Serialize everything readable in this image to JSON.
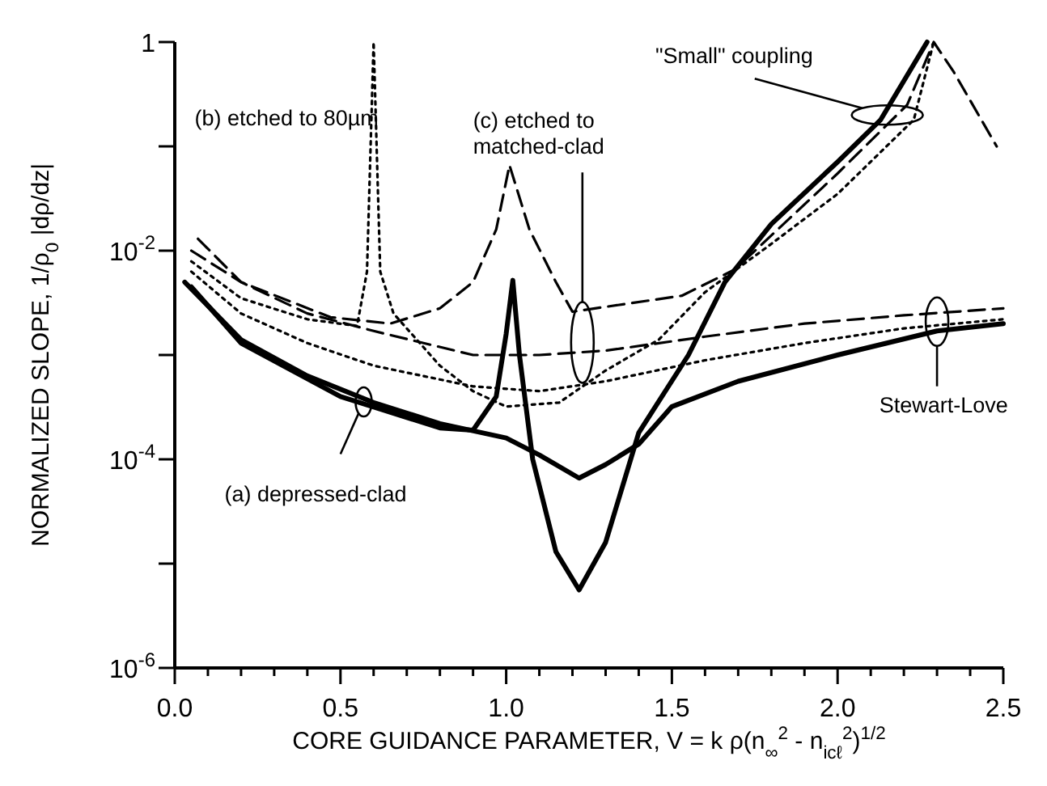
{
  "chart_data": {
    "type": "line",
    "xlabel": "CORE GUIDANCE PARAMETER,   V = k ρ(n$_{∞}$$^{2}$ - n$_{icℓ}$$^{2}$)$^{1/2}$",
    "ylabel": "NORMALIZED SLOPE, 1/ρ$_{0}$ |dρ/dz|",
    "log": true,
    "xlim": [
      0,
      2.5
    ],
    "ylim": [
      1e-06,
      1
    ],
    "xticks": [
      {
        "value": 0,
        "label": "0.0"
      },
      {
        "value": 0.1,
        "label": null
      },
      {
        "value": 0.2,
        "label": null
      },
      {
        "value": 0.3,
        "label": null
      },
      {
        "value": 0.4,
        "label": null
      },
      {
        "value": 0.5,
        "label": "0.5"
      },
      {
        "value": 0.6,
        "label": null
      },
      {
        "value": 0.7,
        "label": null
      },
      {
        "value": 0.8,
        "label": null
      },
      {
        "value": 0.9,
        "label": null
      },
      {
        "value": 1,
        "label": "1.0"
      },
      {
        "value": 1.1,
        "label": null
      },
      {
        "value": 1.2,
        "label": null
      },
      {
        "value": 1.3,
        "label": null
      },
      {
        "value": 1.4,
        "label": null
      },
      {
        "value": 1.5,
        "label": "1.5"
      },
      {
        "value": 1.6,
        "label": null
      },
      {
        "value": 1.7,
        "label": null
      },
      {
        "value": 1.8,
        "label": null
      },
      {
        "value": 1.9,
        "label": null
      },
      {
        "value": 2,
        "label": "2.0"
      },
      {
        "value": 2.1,
        "label": null
      },
      {
        "value": 2.2,
        "label": null
      },
      {
        "value": 2.3,
        "label": null
      },
      {
        "value": 2.4,
        "label": null
      },
      {
        "value": 2.5,
        "label": "2.5"
      }
    ],
    "yticks": [
      1,
      {
        "value": 0.1,
        "label": null
      },
      {
        "value": 0.01,
        "label": "10$^{-2}$"
      },
      {
        "value": 0.001,
        "label": null
      },
      {
        "value": 0.0001,
        "label": "10$^{-4}$"
      },
      {
        "value": 1e-05,
        "label": null
      },
      {
        "value": 1e-06,
        "label": "10$^{-6}$"
      }
    ],
    "series": [
      {
        "color": "#000000",
        "line_style": "solid",
        "x": [
          0.03,
          0.2,
          0.4,
          0.6,
          0.8,
          1.0,
          1.1,
          1.22,
          1.3,
          1.4,
          1.5,
          1.7,
          2.0,
          2.3,
          2.5
        ],
        "values": [
          0.005,
          0.0014,
          0.00063,
          0.00035,
          0.00022,
          0.00016,
          0.00011,
          6.6e-05,
          8.9e-05,
          0.00014,
          0.00032,
          0.00056,
          0.001,
          0.0017,
          0.002
        ]
      },
      {
        "color": "#000000",
        "line_style": "solid",
        "x": [
          0.05,
          0.2,
          0.5,
          0.8,
          0.9,
          0.97,
          1.0,
          1.02,
          1.04,
          1.08,
          1.15,
          1.22,
          1.3,
          1.4,
          1.55,
          1.66,
          1.8,
          2.0,
          2.13,
          2.27
        ],
        "values": [
          0.0045,
          0.0013,
          0.0004,
          0.0002,
          0.00019,
          0.0004,
          0.0016,
          0.0052,
          0.001,
          0.0001,
          1.3e-05,
          5.6e-06,
          1.6e-05,
          0.00018,
          0.001,
          0.005,
          0.018,
          0.071,
          0.18,
          1
        ]
      },
      {
        "color": "#000000",
        "line_style": "dotted",
        "x": [
          0.05,
          0.2,
          0.4,
          0.6,
          0.9,
          1.1,
          1.3,
          1.6,
          1.9,
          2.2,
          2.5
        ],
        "values": [
          0.0063,
          0.0025,
          0.0013,
          0.00079,
          0.0005,
          0.00045,
          0.00056,
          0.00089,
          0.0013,
          0.0018,
          0.0022
        ]
      },
      {
        "color": "#000000",
        "line_style": "dotted",
        "x": [
          0.05,
          0.2,
          0.4,
          0.55,
          0.58,
          0.6,
          0.62,
          0.66,
          0.8,
          0.9,
          1.0,
          1.16,
          1.3,
          1.46,
          1.6,
          1.79,
          2.0,
          2.23,
          2.29
        ],
        "values": [
          0.0079,
          0.0035,
          0.0022,
          0.0019,
          0.0063,
          1,
          0.0063,
          0.0025,
          0.00079,
          0.00045,
          0.00032,
          0.00035,
          0.00071,
          0.0014,
          0.004,
          0.011,
          0.035,
          0.18,
          1
        ]
      },
      {
        "color": "#000000",
        "line_style": "dashed",
        "x": [
          0.05,
          0.2,
          0.4,
          0.6,
          0.9,
          1.1,
          1.3,
          1.6,
          1.9,
          2.2,
          2.5
        ],
        "values": [
          0.01,
          0.005,
          0.0025,
          0.0017,
          0.001,
          0.001,
          0.0011,
          0.0015,
          0.002,
          0.0024,
          0.0028
        ]
      },
      {
        "color": "#000000",
        "line_style": "dashed",
        "x": [
          0.07,
          0.2,
          0.47,
          0.65,
          0.8,
          0.9,
          0.97,
          1.01,
          1.07,
          1.15,
          1.2,
          1.53,
          1.69,
          2.0,
          2.21,
          2.29,
          2.35,
          2.48
        ],
        "values": [
          0.013,
          0.005,
          0.0023,
          0.002,
          0.0028,
          0.005,
          0.016,
          0.066,
          0.016,
          0.005,
          0.0026,
          0.0037,
          0.0066,
          0.055,
          0.25,
          1,
          0.52,
          0.1
        ]
      }
    ],
    "annotations": [
      "(b) etched to 80µm",
      "(c) etched to matched-clad",
      "\"Small\" coupling",
      "Stewart-Love",
      "(a) depressed-clad"
    ]
  }
}
